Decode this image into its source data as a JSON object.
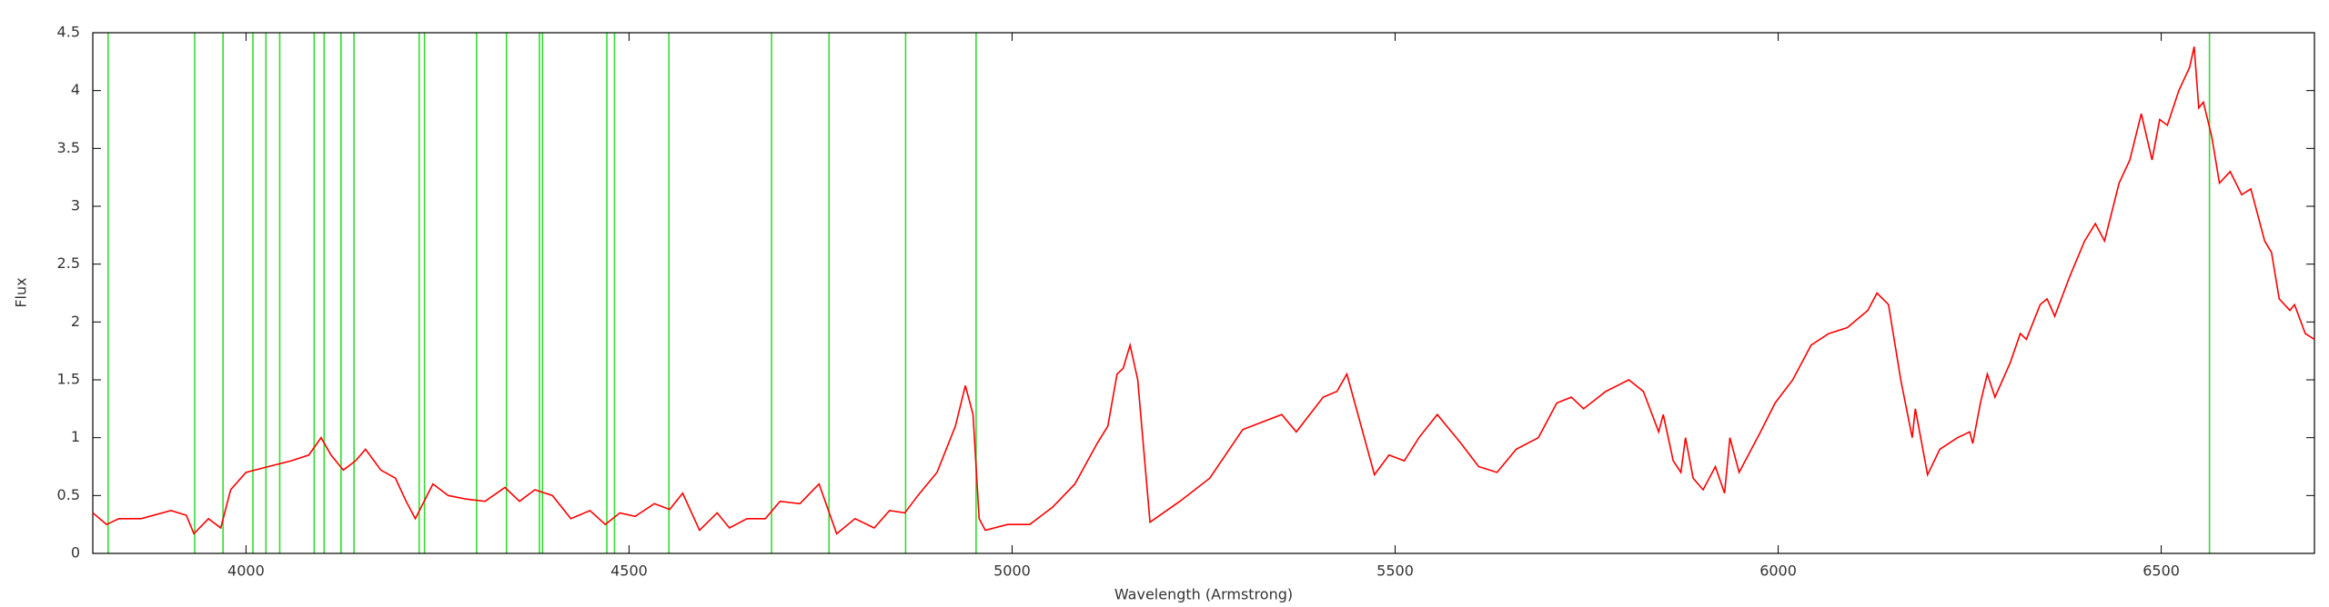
{
  "chart_data": {
    "type": "line",
    "xlabel": "Wavelength (Armstrong)",
    "ylabel": "Flux",
    "xlim": [
      3800,
      6700
    ],
    "ylim": [
      0,
      4.5
    ],
    "xticks": [
      4000,
      4500,
      5000,
      5500,
      6000,
      6500
    ],
    "yticks": [
      0,
      0.5,
      1,
      1.5,
      2,
      2.5,
      3,
      3.5,
      4,
      4.5
    ],
    "color": "#ff0000",
    "x": [
      3800,
      3818,
      3834,
      3863,
      3902,
      3922,
      3932,
      3951,
      3967,
      3980,
      4000,
      4029,
      4059,
      4082,
      4098,
      4111,
      4127,
      4143,
      4156,
      4176,
      4195,
      4209,
      4221,
      4244,
      4264,
      4287,
      4312,
      4338,
      4357,
      4377,
      4400,
      4424,
      4449,
      4469,
      4488,
      4508,
      4533,
      4553,
      4570,
      4592,
      4615,
      4631,
      4654,
      4678,
      4697,
      4723,
      4748,
      4771,
      4795,
      4820,
      4840,
      4860,
      4877,
      4902,
      4926,
      4939,
      4949,
      4957,
      4965,
      4994,
      5023,
      5053,
      5082,
      5111,
      5125,
      5137,
      5145,
      5154,
      5164,
      5180,
      5219,
      5258,
      5301,
      5352,
      5371,
      5406,
      5424,
      5437,
      5473,
      5492,
      5512,
      5531,
      5555,
      5586,
      5609,
      5633,
      5658,
      5687,
      5711,
      5730,
      5746,
      5775,
      5805,
      5824,
      5844,
      5850,
      5863,
      5873,
      5879,
      5889,
      5902,
      5918,
      5930,
      5937,
      5949,
      5961,
      5977,
      5996,
      6019,
      6043,
      6066,
      6090,
      6117,
      6129,
      6144,
      6160,
      6175,
      6179,
      6195,
      6211,
      6234,
      6250,
      6254,
      6264,
      6273,
      6283,
      6303,
      6316,
      6324,
      6342,
      6351,
      6361,
      6381,
      6400,
      6414,
      6426,
      6445,
      6459,
      6474,
      6488,
      6498,
      6508,
      6523,
      6537,
      6543,
      6549,
      6555,
      6566,
      6576,
      6590,
      6605,
      6617,
      6635,
      6644,
      6654,
      6668,
      6674,
      6688,
      6700
    ],
    "values": [
      0.35,
      0.25,
      0.3,
      0.3,
      0.37,
      0.33,
      0.17,
      0.3,
      0.22,
      0.55,
      0.7,
      0.75,
      0.8,
      0.85,
      1.0,
      0.85,
      0.72,
      0.8,
      0.9,
      0.72,
      0.65,
      0.45,
      0.3,
      0.6,
      0.5,
      0.47,
      0.45,
      0.57,
      0.45,
      0.55,
      0.5,
      0.3,
      0.37,
      0.25,
      0.35,
      0.32,
      0.43,
      0.38,
      0.52,
      0.2,
      0.35,
      0.22,
      0.3,
      0.3,
      0.45,
      0.43,
      0.6,
      0.17,
      0.3,
      0.22,
      0.37,
      0.35,
      0.5,
      0.7,
      1.1,
      1.45,
      1.2,
      0.3,
      0.2,
      0.25,
      0.25,
      0.4,
      0.6,
      0.95,
      1.1,
      1.55,
      1.6,
      1.8,
      1.5,
      0.27,
      0.45,
      0.65,
      1.07,
      1.2,
      1.05,
      1.35,
      1.4,
      1.55,
      0.68,
      0.85,
      0.8,
      1.0,
      1.2,
      0.95,
      0.75,
      0.7,
      0.9,
      1.0,
      1.3,
      1.35,
      1.25,
      1.4,
      1.5,
      1.4,
      1.05,
      1.2,
      0.8,
      0.7,
      1.0,
      0.65,
      0.55,
      0.75,
      0.52,
      1.0,
      0.7,
      0.85,
      1.05,
      1.3,
      1.5,
      1.8,
      1.9,
      1.95,
      2.1,
      2.25,
      2.15,
      1.5,
      1.0,
      1.25,
      0.68,
      0.9,
      1.0,
      1.05,
      0.95,
      1.3,
      1.55,
      1.35,
      1.65,
      1.9,
      1.85,
      2.15,
      2.2,
      2.05,
      2.4,
      2.7,
      2.85,
      2.7,
      3.2,
      3.4,
      3.8,
      3.4,
      3.75,
      3.7,
      4.0,
      4.2,
      4.38,
      3.85,
      3.9,
      3.6,
      3.2,
      3.3,
      3.1,
      3.15,
      2.7,
      2.6,
      2.2,
      2.1,
      2.15,
      1.9,
      1.85
    ],
    "vline_color": "#33dd33",
    "vlines": [
      3820,
      3933,
      3970,
      4009,
      4026,
      4044,
      4089,
      4102,
      4124,
      4141,
      4226,
      4233,
      4301,
      4340,
      4383,
      4387,
      4471,
      4481,
      4552,
      4686,
      4761,
      4861,
      4953,
      6563
    ]
  }
}
